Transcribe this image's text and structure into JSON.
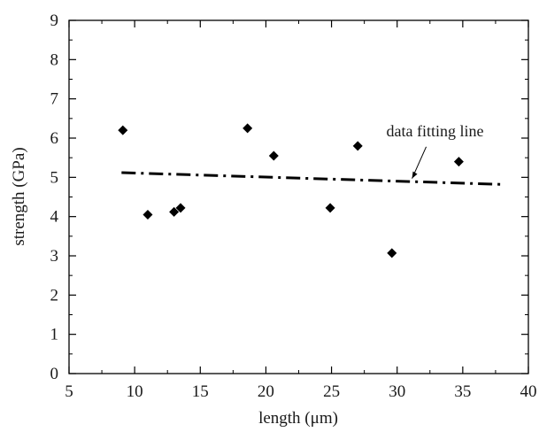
{
  "chart_data": {
    "type": "scatter",
    "xlabel": "length (μm)",
    "ylabel": "strength (GPa)",
    "xlim": [
      5,
      40
    ],
    "ylim": [
      0,
      9
    ],
    "xticks": [
      "5",
      "10",
      "15",
      "20",
      "25",
      "30",
      "35",
      "40"
    ],
    "yticks": [
      "0",
      "1",
      "2",
      "3",
      "4",
      "5",
      "6",
      "7",
      "8",
      "9"
    ],
    "grid": false,
    "series": [
      {
        "marker": "diamond",
        "color": "#000000",
        "points": [
          {
            "x": 9.1,
            "y": 6.2
          },
          {
            "x": 11.0,
            "y": 4.05
          },
          {
            "x": 13.0,
            "y": 4.12
          },
          {
            "x": 13.5,
            "y": 4.22
          },
          {
            "x": 18.6,
            "y": 6.25
          },
          {
            "x": 20.6,
            "y": 5.55
          },
          {
            "x": 24.9,
            "y": 4.22
          },
          {
            "x": 27.0,
            "y": 5.8
          },
          {
            "x": 29.6,
            "y": 3.07
          },
          {
            "x": 34.7,
            "y": 5.4
          }
        ]
      }
    ],
    "fit_line": {
      "style": "dash-dot",
      "color": "#000000",
      "points": [
        {
          "x": 9.0,
          "y": 5.12
        },
        {
          "x": 38.0,
          "y": 4.82
        }
      ]
    },
    "annotations": [
      {
        "text": "data fitting line",
        "target": {
          "x": 31.0,
          "y": 4.88
        }
      }
    ]
  }
}
